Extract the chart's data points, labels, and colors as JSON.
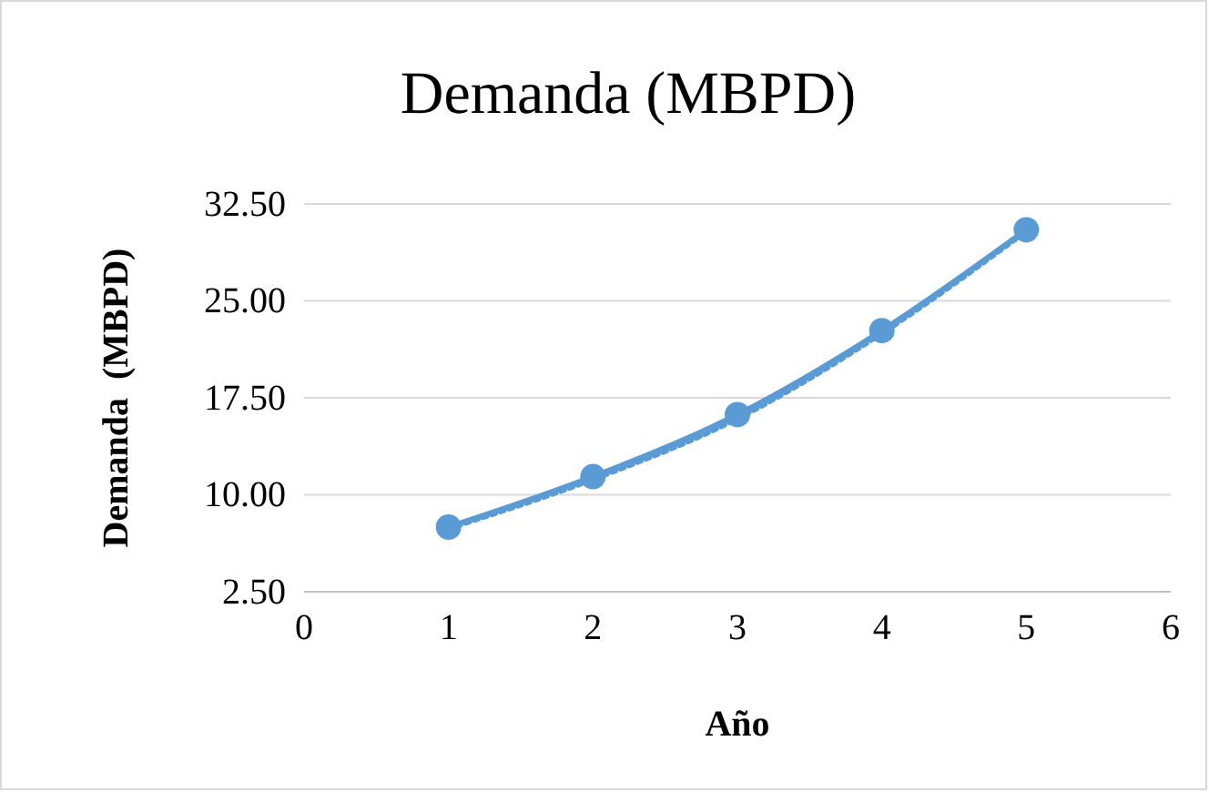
{
  "chart_data": {
    "type": "line",
    "title": "Demanda (MBPD)",
    "xlabel": "Año",
    "ylabel": "Demanda  (MBPD)",
    "x": [
      1,
      2,
      3,
      4,
      5
    ],
    "series": [
      {
        "color": "#5b9bd5",
        "values": [
          7.5,
          11.4,
          16.2,
          22.7,
          30.5
        ],
        "marker": "circle",
        "line_style": "solid"
      },
      {
        "type": "line",
        "color": "#5b9bd5",
        "x": [
          1,
          2,
          3,
          4,
          5
        ],
        "values": [
          7.4,
          11.2,
          15.9,
          22.5,
          30.4
        ],
        "marker": "none",
        "line_style": "dotted"
      }
    ],
    "xlim": [
      0,
      6
    ],
    "xticks": [
      0,
      1,
      2,
      3,
      4,
      5,
      6
    ],
    "ylim": [
      2.5,
      32.5
    ],
    "yticks": [
      {
        "value": 2.5,
        "label": "2.50"
      },
      {
        "value": 10,
        "label": "10.00"
      },
      {
        "value": 17.5,
        "label": "17.50"
      },
      {
        "value": 25,
        "label": "25.00"
      },
      {
        "value": 32.5,
        "label": "32.50"
      }
    ],
    "grid": "y"
  }
}
